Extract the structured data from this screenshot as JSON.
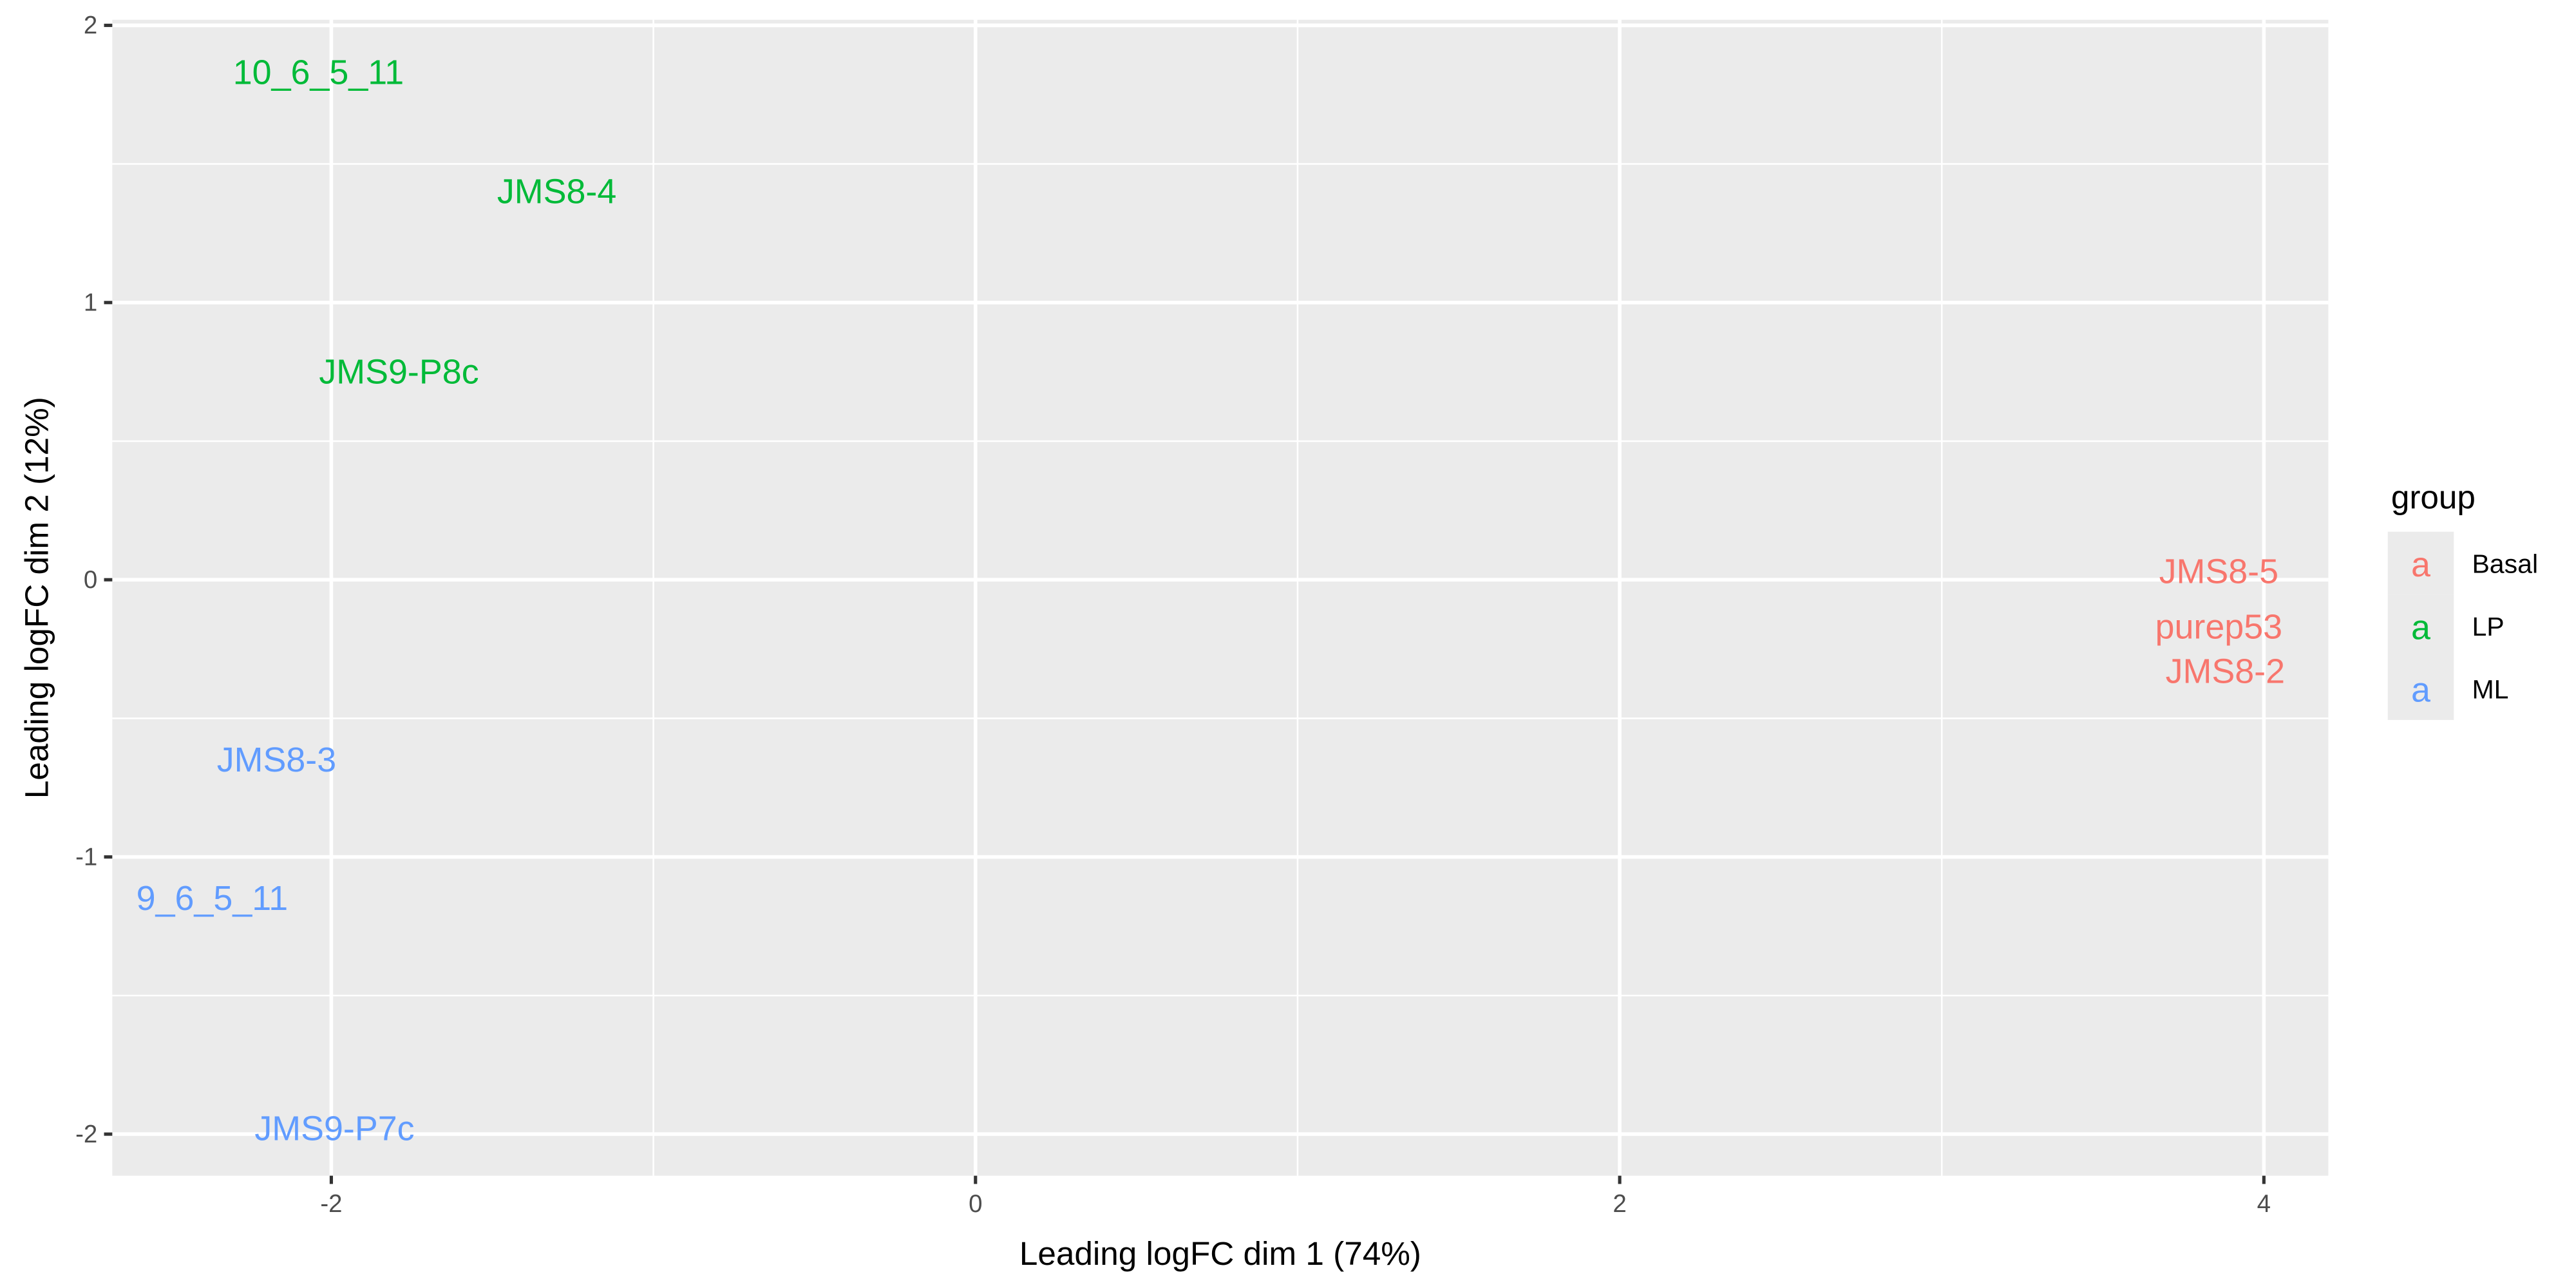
{
  "chart_data": {
    "type": "scatter",
    "marker": "text-label",
    "xlabel": "Leading logFC dim 1 (74%)",
    "ylabel": "Leading logFC dim 2 (12%)",
    "xlim": [
      -2.68,
      4.2
    ],
    "ylim": [
      -2.15,
      2.02
    ],
    "xticks": [
      -2,
      0,
      2,
      4
    ],
    "yticks": [
      -2,
      -1,
      0,
      1,
      2
    ],
    "grid": true,
    "legend": {
      "title": "group",
      "placement": "right",
      "entries": [
        {
          "name": "Basal",
          "color": "#F8766D",
          "key": "a"
        },
        {
          "name": "LP",
          "color": "#00BA38",
          "key": "a"
        },
        {
          "name": "ML",
          "color": "#619CFF",
          "key": "a"
        }
      ]
    },
    "points": [
      {
        "label": "10_6_5_11",
        "group": "LP",
        "x": -2.04,
        "y": 1.83
      },
      {
        "label": "JMS8-4",
        "group": "LP",
        "x": -1.3,
        "y": 1.4
      },
      {
        "label": "JMS9-P8c",
        "group": "LP",
        "x": -1.79,
        "y": 0.75
      },
      {
        "label": "JMS8-3",
        "group": "ML",
        "x": -2.17,
        "y": -0.65
      },
      {
        "label": "9_6_5_11",
        "group": "ML",
        "x": -2.37,
        "y": -1.15
      },
      {
        "label": "JMS9-P7c",
        "group": "ML",
        "x": -1.99,
        "y": -1.98
      },
      {
        "label": "JMS8-5",
        "group": "Basal",
        "x": 3.86,
        "y": 0.03
      },
      {
        "label": "purep53",
        "group": "Basal",
        "x": 3.86,
        "y": -0.17
      },
      {
        "label": "JMS8-2",
        "group": "Basal",
        "x": 3.88,
        "y": -0.18
      }
    ]
  }
}
